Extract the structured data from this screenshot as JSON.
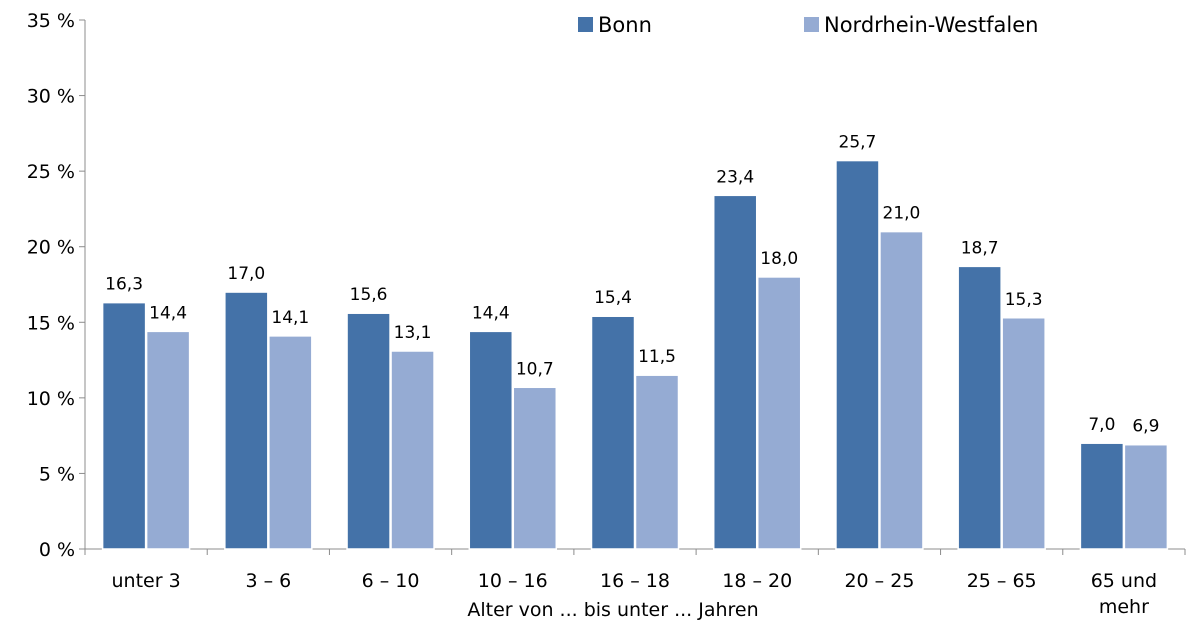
{
  "chart_data": {
    "type": "bar",
    "title": "",
    "xlabel": "Alter von ... bis unter ... Jahren",
    "ylabel": "",
    "ylim": [
      0,
      35
    ],
    "yticks": [
      {
        "value": 0,
        "label": "0 %"
      },
      {
        "value": 5,
        "label": "5 %"
      },
      {
        "value": 10,
        "label": "10 %"
      },
      {
        "value": 15,
        "label": "15 %"
      },
      {
        "value": 20,
        "label": "20 %"
      },
      {
        "value": 25,
        "label": "25 %"
      },
      {
        "value": 30,
        "label": "30 %"
      },
      {
        "value": 35,
        "label": "35 %"
      }
    ],
    "categories": [
      [
        "unter 3"
      ],
      [
        "3 –  6"
      ],
      [
        "6 – 10"
      ],
      [
        "10 – 16"
      ],
      [
        "16 – 18"
      ],
      [
        "18 – 20"
      ],
      [
        "20 – 25"
      ],
      [
        "25 – 65"
      ],
      [
        "65 und",
        "mehr"
      ]
    ],
    "series": [
      {
        "name": "Bonn",
        "color": "#4472a8",
        "values": [
          16.3,
          17.0,
          15.6,
          14.4,
          15.4,
          23.4,
          25.7,
          18.7,
          7.0
        ],
        "labels": [
          "16,3",
          "17,0",
          "15,6",
          "14,4",
          "15,4",
          "23,4",
          "25,7",
          "18,7",
          "7,0"
        ]
      },
      {
        "name": "Nordrhein-Westfalen",
        "color": "#95abd3",
        "values": [
          14.4,
          14.1,
          13.1,
          10.7,
          11.5,
          18.0,
          21.0,
          15.3,
          6.9
        ],
        "labels": [
          "14,4",
          "14,1",
          "13,1",
          "10,7",
          "11,5",
          "18,0",
          "21,0",
          "15,3",
          "6,9"
        ]
      }
    ],
    "legend": "top-right",
    "grid": false
  }
}
